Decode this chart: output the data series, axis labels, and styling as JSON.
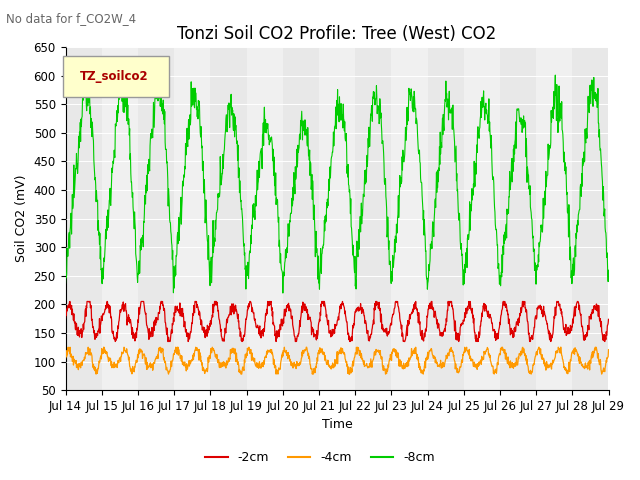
{
  "title": "Tonzi Soil CO2 Profile: Tree (West) CO2",
  "xlabel": "Time",
  "ylabel": "Soil CO2 (mV)",
  "ylim": [
    50,
    650
  ],
  "no_data_text": "No data for f_CO2W_4",
  "legend_label": "TZ_soilco2",
  "xtick_labels": [
    "Jul 14",
    "Jul 15",
    "Jul 16",
    "Jul 17",
    "Jul 18",
    "Jul 19",
    "Jul 20",
    "Jul 21",
    "Jul 22",
    "Jul 23",
    "Jul 24",
    "Jul 25",
    "Jul 26",
    "Jul 27",
    "Jul 28",
    "Jul 29"
  ],
  "line_colors": [
    "#dd0000",
    "#ff9900",
    "#00cc00"
  ],
  "line_labels": [
    "-2cm",
    "-4cm",
    "-8cm"
  ],
  "background_bands": [
    "#e8e8e8",
    "#f0f0f0"
  ],
  "title_fontsize": 12,
  "axis_fontsize": 9,
  "tick_fontsize": 8.5
}
